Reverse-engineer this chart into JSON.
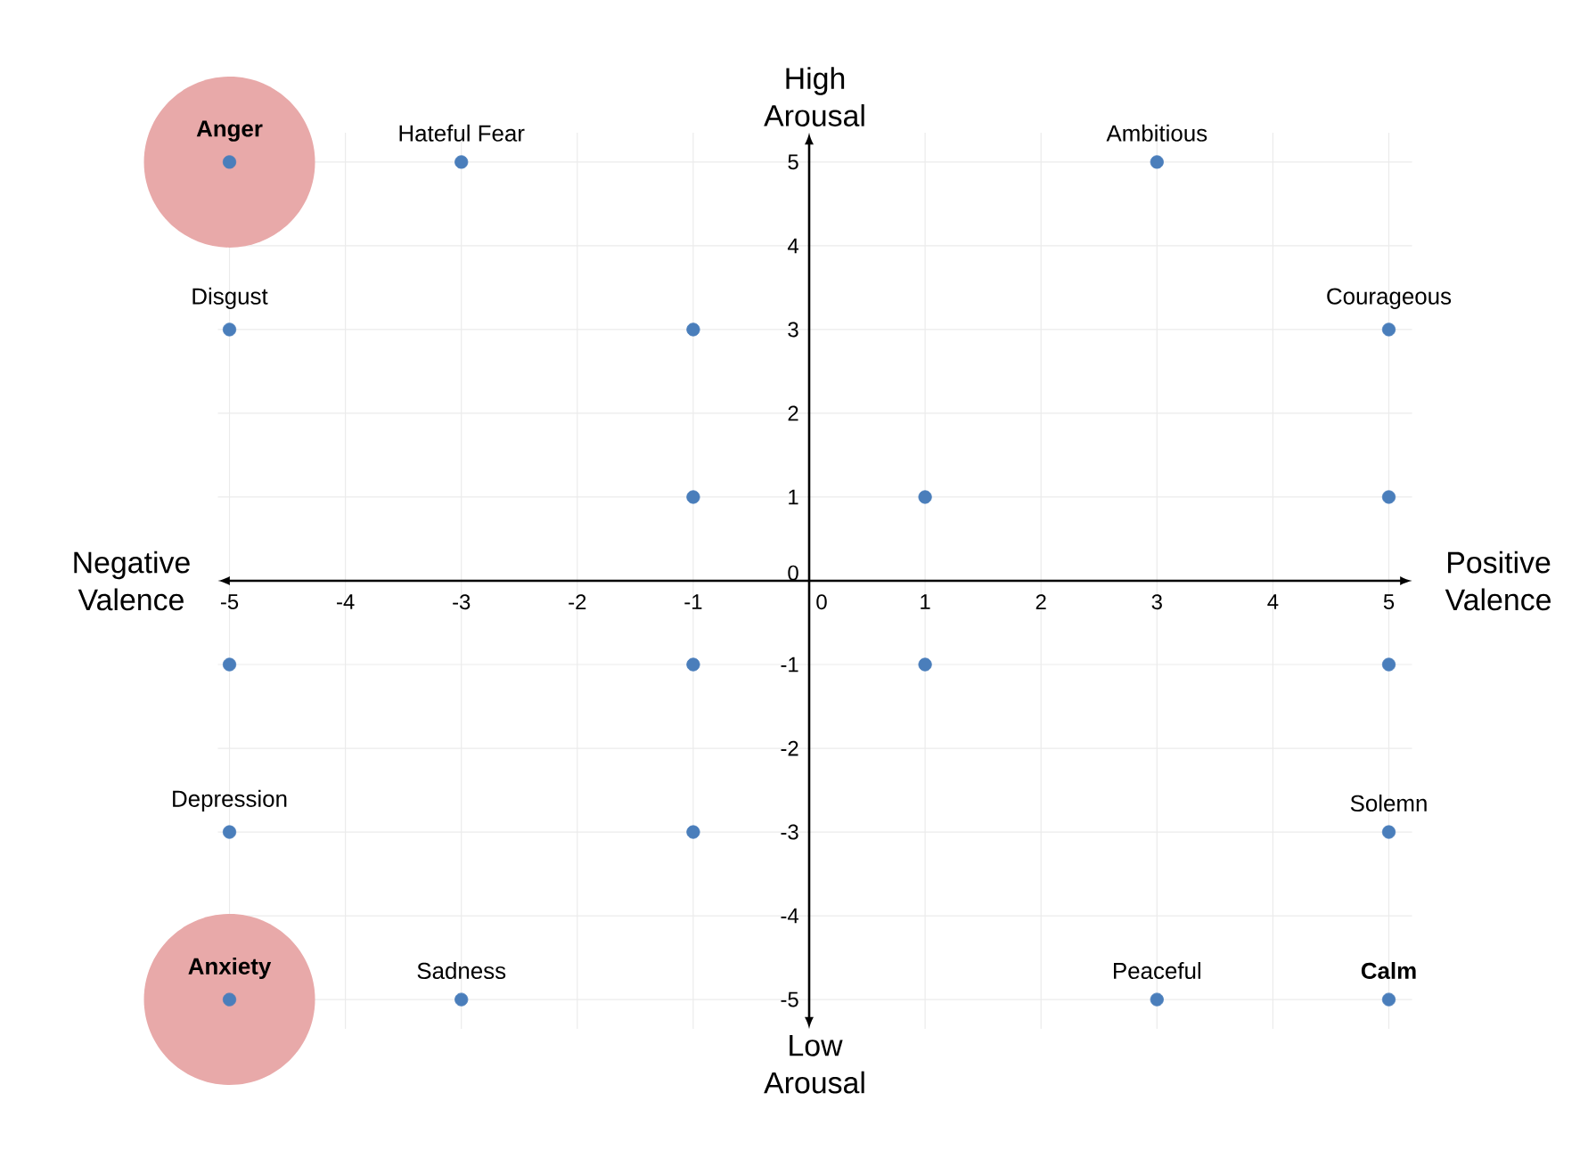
{
  "chart_data": {
    "type": "scatter",
    "xlabel": "Positive Valence",
    "ylabel": "High Arousal",
    "xlim": [
      -5.1,
      5.2
    ],
    "ylim": [
      -5.35,
      5.35
    ],
    "xticks": [
      -5,
      -4,
      -3,
      -2,
      -1,
      0,
      1,
      2,
      3,
      4,
      5
    ],
    "yticks": [
      -5,
      -4,
      -3,
      -2,
      -1,
      0,
      1,
      2,
      3,
      4,
      5
    ],
    "grid": true,
    "marker": "circle",
    "series": [
      {
        "type": "bubble",
        "color": "#e8a9a9",
        "x": [
          -5,
          -5
        ],
        "values": [
          5,
          -5
        ],
        "sizes": [
          1,
          1
        ]
      },
      {
        "color": "#4a7ebb",
        "x": [
          -5,
          -3,
          3,
          -5,
          -1,
          5,
          -1,
          1,
          5,
          -5,
          -1,
          1,
          5,
          -5,
          -1,
          5,
          -5,
          -3,
          3,
          5
        ],
        "values": [
          5,
          5,
          5,
          3,
          3,
          3,
          1,
          1,
          1,
          -1,
          -1,
          -1,
          -1,
          -3,
          -3,
          -3,
          -5,
          -5,
          -5,
          -5
        ]
      }
    ],
    "annotations": [
      "Negative Valence",
      "Low Arousal",
      {
        "text": "**Anger**",
        "x": -5,
        "y": 5
      },
      {
        "text": "Hateful Fear",
        "x": -3,
        "y": 5
      },
      {
        "text": "Ambitious",
        "x": 3,
        "y": 5
      },
      {
        "text": "Disgust",
        "x": -5,
        "y": 3
      },
      {
        "text": "Courageous",
        "x": 5,
        "y": 3
      },
      {
        "text": "Depression",
        "x": -5,
        "y": -3
      },
      {
        "text": "Solemn",
        "x": 5,
        "y": -3
      },
      {
        "text": "**Anxiety**",
        "x": -5,
        "y": -5
      },
      {
        "text": "Sadness",
        "x": -3,
        "y": -5
      },
      {
        "text": "Peaceful",
        "x": 3,
        "y": -5
      },
      {
        "text": "**Calm**",
        "x": 5,
        "y": -5
      }
    ]
  }
}
